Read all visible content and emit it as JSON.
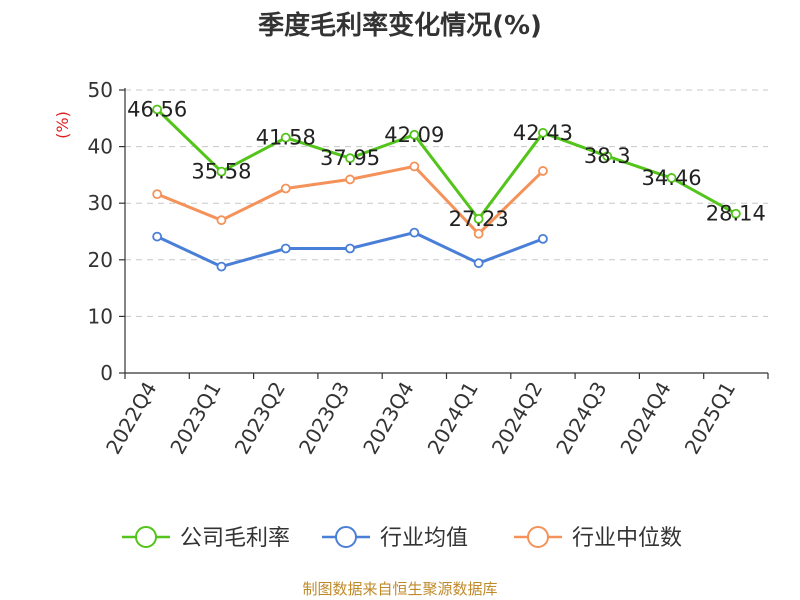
{
  "chart_data": {
    "type": "line",
    "title": "季度毛利率变化情况(%)",
    "ylabel": "(%)",
    "xlabel": "",
    "ylim": [
      0,
      50
    ],
    "yticks": [
      0,
      10,
      20,
      30,
      40,
      50
    ],
    "grid": true,
    "legend_position": "bottom",
    "categories": [
      "2022Q4",
      "2023Q1",
      "2023Q2",
      "2023Q3",
      "2023Q4",
      "2024Q1",
      "2024Q2",
      "2024Q3",
      "2024Q4",
      "2025Q1"
    ],
    "series": [
      {
        "name": "公司毛利率",
        "color": "#52c41a",
        "show_labels": true,
        "values": [
          46.56,
          35.58,
          41.58,
          37.95,
          42.09,
          27.23,
          42.43,
          38.3,
          34.46,
          28.14
        ]
      },
      {
        "name": "行业均值",
        "color": "#4a7fd8",
        "show_labels": false,
        "values": [
          24.1,
          18.8,
          22.0,
          22.0,
          24.8,
          19.4,
          23.7,
          null,
          null,
          null
        ]
      },
      {
        "name": "行业中位数",
        "color": "#f4925a",
        "show_labels": false,
        "values": [
          31.6,
          27.0,
          32.6,
          34.2,
          36.5,
          24.6,
          35.7,
          null,
          null,
          null
        ]
      }
    ],
    "source": "制图数据来自恒生聚源数据库"
  }
}
